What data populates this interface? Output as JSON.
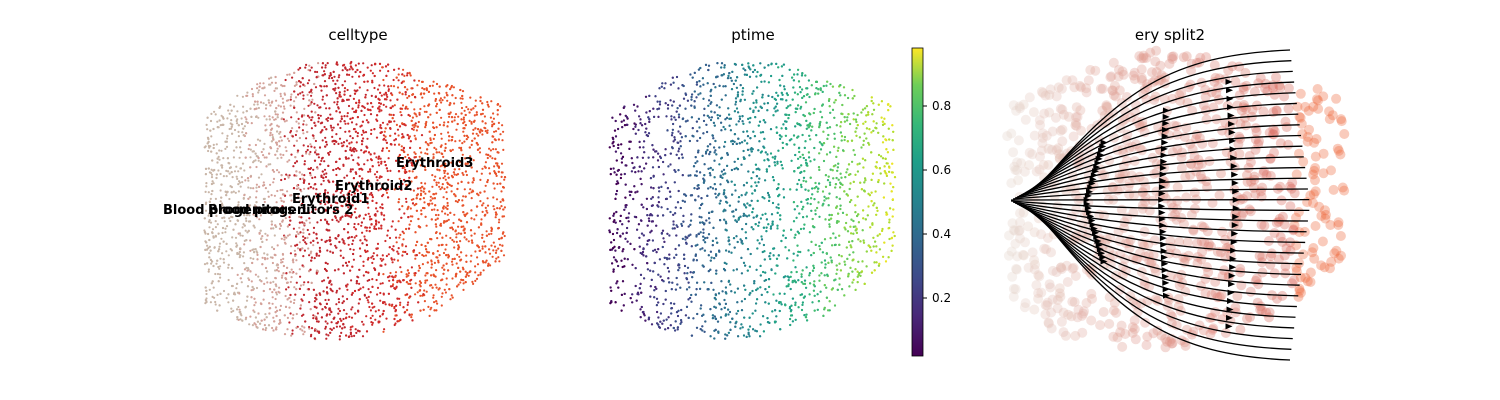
{
  "chart_data": [
    {
      "type": "scatter",
      "title": "celltype",
      "legend": "on data",
      "categories": [
        "Blood progenitors 1",
        "Blood progenitors 2",
        "Erythroid1",
        "Erythroid2",
        "Erythroid3"
      ],
      "category_colors": [
        "#c9b6a8",
        "#d4a29a",
        "#c0262e",
        "#cf2a2a",
        "#e8522a"
      ],
      "labels": [
        {
          "text": "Blood progenitors 1"
        },
        {
          "text": "Blood progenitors 2"
        },
        {
          "text": "Erythroid1"
        },
        {
          "text": "Erythroid2"
        },
        {
          "text": "Erythroid3"
        }
      ],
      "xlabel": "",
      "ylabel": "",
      "grid": false
    },
    {
      "type": "scatter",
      "title": "ptime",
      "colormap": "viridis",
      "colorbar": {
        "min": 0.0,
        "max": 0.98,
        "ticks": [
          "0.2",
          "0.4",
          "0.6",
          "0.8"
        ]
      },
      "xlabel": "",
      "ylabel": "",
      "grid": false
    },
    {
      "type": "scatter",
      "title": "ery split2",
      "overlay": "velocity streamlines",
      "colors": [
        "#e6d8cf",
        "#d9675a",
        "#ee6a3f"
      ],
      "xlabel": "",
      "ylabel": "",
      "grid": false
    }
  ]
}
